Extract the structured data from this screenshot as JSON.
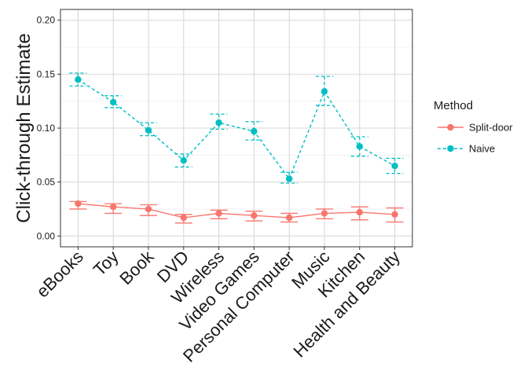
{
  "chart_data": {
    "type": "line",
    "title": "",
    "xlabel": "",
    "ylabel": "Click-through Estimate",
    "ylim": [
      -0.01,
      0.21
    ],
    "yticks": [
      0.0,
      0.05,
      0.1,
      0.15,
      0.2
    ],
    "ytick_labels": [
      "0.00",
      "0.05",
      "0.10",
      "0.15",
      "0.20"
    ],
    "categories": [
      "eBooks",
      "Toy",
      "Book",
      "DVD",
      "Wireless",
      "Video Games",
      "Personal Computer",
      "Music",
      "Kitchen",
      "Health and Beauty"
    ],
    "grid": true,
    "legend": {
      "title": "Method",
      "placement": "right"
    },
    "series": [
      {
        "name": "Split-door",
        "color": "#F8766D",
        "line_style": "solid",
        "values": [
          0.03,
          0.027,
          0.025,
          0.017,
          0.021,
          0.019,
          0.017,
          0.021,
          0.022,
          0.02
        ],
        "lower": [
          0.025,
          0.021,
          0.019,
          0.012,
          0.016,
          0.014,
          0.013,
          0.016,
          0.015,
          0.013
        ],
        "upper": [
          0.032,
          0.03,
          0.029,
          0.02,
          0.024,
          0.023,
          0.021,
          0.025,
          0.027,
          0.026
        ]
      },
      {
        "name": "Naive",
        "color": "#00BFC4",
        "line_style": "dashed",
        "values": [
          0.145,
          0.124,
          0.098,
          0.07,
          0.105,
          0.097,
          0.053,
          0.134,
          0.083,
          0.065
        ],
        "lower": [
          0.139,
          0.119,
          0.093,
          0.064,
          0.099,
          0.089,
          0.049,
          0.121,
          0.074,
          0.058
        ],
        "upper": [
          0.151,
          0.13,
          0.105,
          0.076,
          0.113,
          0.106,
          0.059,
          0.148,
          0.092,
          0.072
        ]
      }
    ]
  }
}
